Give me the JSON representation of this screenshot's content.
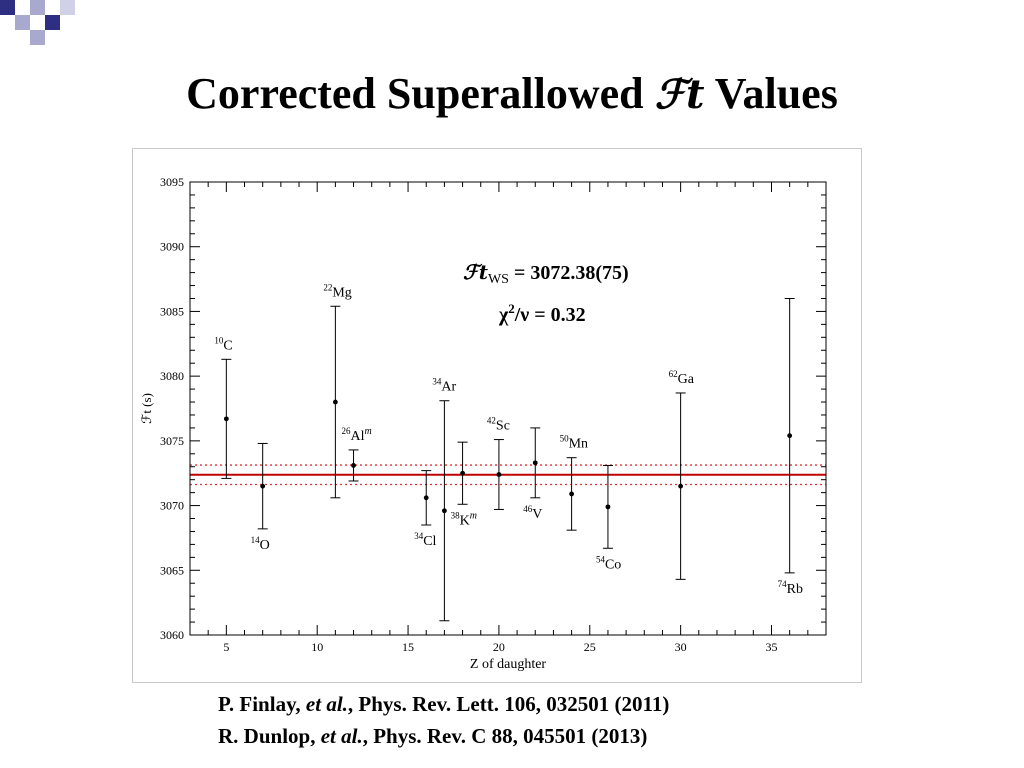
{
  "slide": {
    "title_before": "Corrected Superallowed ",
    "title_symbol": "ℱt",
    "title_after": " Values",
    "references": [
      {
        "author": "P. Finlay, ",
        "etal": "et al.",
        "rest": ", Phys. Rev. Lett. 106, 032501 (2011)"
      },
      {
        "author": "R. Dunlop, ",
        "etal": "et al.",
        "rest": ", Phys. Rev. C 88, 045501 (2013)"
      }
    ],
    "colors": {
      "deco_dark": "#2e2e82",
      "deco_light": "#a9a9cf",
      "mean_line": "#c00000",
      "band_line": "#e03030"
    }
  },
  "chart_data": {
    "type": "scatter",
    "xlabel": "Z of daughter",
    "ylabel": "ℱt (s)",
    "xlim": [
      3,
      38
    ],
    "ylim": [
      3060,
      3095
    ],
    "x_ticks": [
      5,
      10,
      15,
      20,
      25,
      30,
      35
    ],
    "y_ticks": [
      3060,
      3065,
      3070,
      3075,
      3080,
      3085,
      3090,
      3095
    ],
    "grid": false,
    "mean": 3072.38,
    "mean_uncertainty": 0.75,
    "annotation_ft": "ℱt",
    "annotation_sub": "WS",
    "annotation_value": " = 3072.38(75)",
    "annotation_chi": "χ",
    "annotation_chi_sup": "2",
    "annotation_chi_rest": "/ν = 0.32",
    "points": [
      {
        "z": 5,
        "ft": 3076.7,
        "err": 4.6,
        "mass": "10",
        "element": "C",
        "iso": "",
        "label_pos": "above"
      },
      {
        "z": 7,
        "ft": 3071.5,
        "err": 3.3,
        "mass": "14",
        "element": "O",
        "iso": "",
        "label_pos": "below"
      },
      {
        "z": 11,
        "ft": 3078.0,
        "err": 7.4,
        "mass": "22",
        "element": "Mg",
        "iso": "",
        "label_pos": "above"
      },
      {
        "z": 12,
        "ft": 3073.1,
        "err": 1.2,
        "mass": "26",
        "element": "Al",
        "iso": "m",
        "label_pos": "above"
      },
      {
        "z": 16,
        "ft": 3070.6,
        "err": 2.1,
        "mass": "34",
        "element": "Cl",
        "iso": "",
        "label_pos": "below"
      },
      {
        "z": 17,
        "ft": 3069.6,
        "err": 8.5,
        "mass": "34",
        "element": "Ar",
        "iso": "",
        "label_pos": "above"
      },
      {
        "z": 18,
        "ft": 3072.5,
        "err": 2.4,
        "mass": "38",
        "element": "K",
        "iso": "m",
        "label_pos": "below"
      },
      {
        "z": 20,
        "ft": 3072.4,
        "err": 2.7,
        "mass": "42",
        "element": "Sc",
        "iso": "",
        "label_pos": "above"
      },
      {
        "z": 22,
        "ft": 3073.3,
        "err": 2.7,
        "mass": "46",
        "element": "V",
        "iso": "",
        "label_pos": "below"
      },
      {
        "z": 24,
        "ft": 3070.9,
        "err": 2.8,
        "mass": "50",
        "element": "Mn",
        "iso": "",
        "label_pos": "above"
      },
      {
        "z": 26,
        "ft": 3069.9,
        "err": 3.2,
        "mass": "54",
        "element": "Co",
        "iso": "",
        "label_pos": "below"
      },
      {
        "z": 30,
        "ft": 3071.5,
        "err": 7.2,
        "mass": "62",
        "element": "Ga",
        "iso": "",
        "label_pos": "above"
      },
      {
        "z": 36,
        "ft": 3075.4,
        "err": 10.6,
        "mass": "74",
        "element": "Rb",
        "iso": "",
        "label_pos": "below"
      }
    ]
  }
}
